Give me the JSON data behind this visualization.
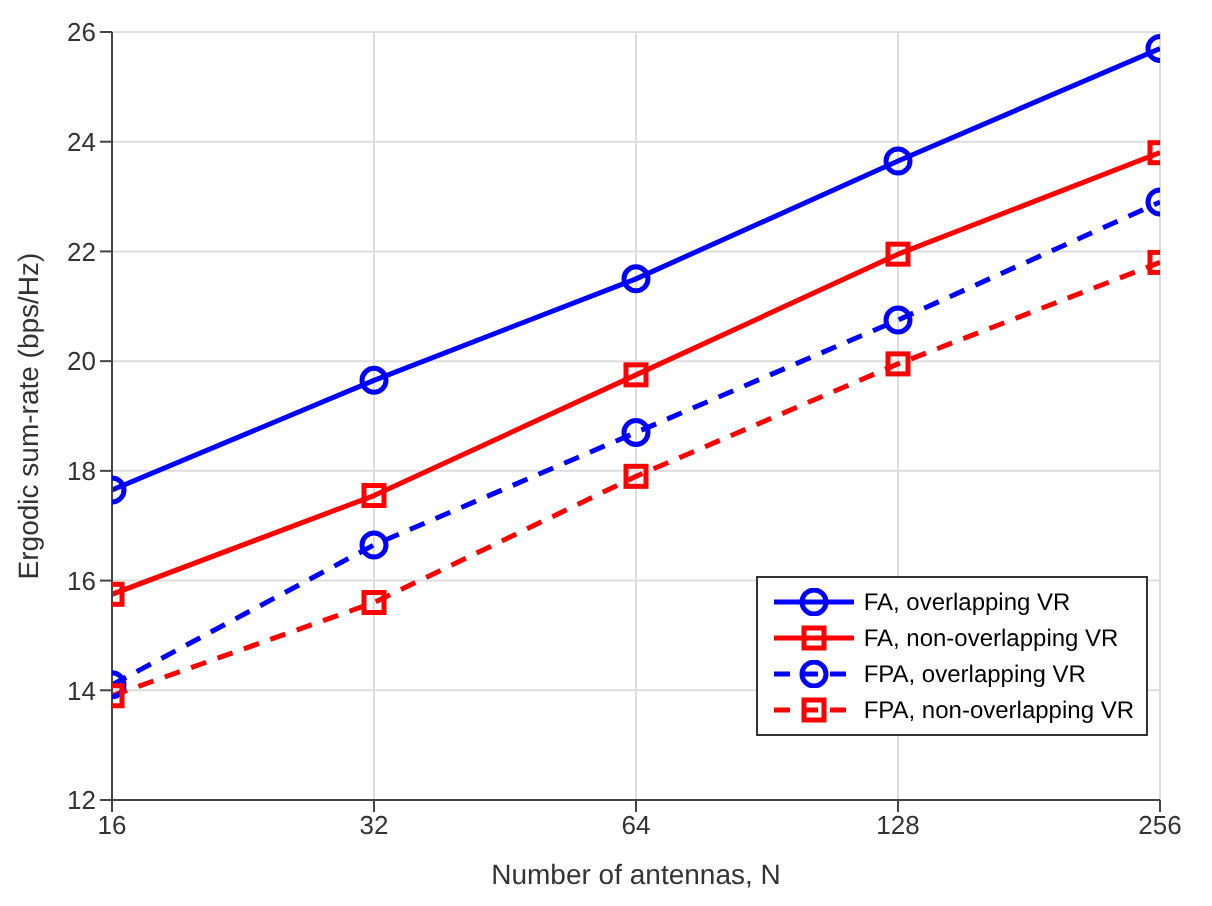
{
  "chart_data": {
    "type": "line",
    "xlabel": "Number of antennas, N",
    "ylabel": "Ergodic sum-rate (bps/Hz)",
    "x": [
      16,
      32,
      64,
      128,
      256
    ],
    "log": "x",
    "xlim": [
      16,
      256
    ],
    "xticks": [
      16,
      32,
      64,
      128,
      256
    ],
    "ylim": [
      12,
      26
    ],
    "yticks": [
      12,
      14,
      16,
      18,
      20,
      22,
      24,
      26
    ],
    "grid": true,
    "legend": "bottom right",
    "series": [
      {
        "name": "FA, overlapping VR",
        "color": "#0000ff",
        "marker": "circle",
        "line_style": "solid",
        "values": [
          17.65,
          19.65,
          21.5,
          23.65,
          25.7
        ]
      },
      {
        "name": "FA, non-overlapping VR",
        "color": "#ff0000",
        "marker": "square",
        "line_style": "solid",
        "values": [
          15.75,
          17.55,
          19.75,
          21.95,
          23.8
        ]
      },
      {
        "name": "FPA, overlapping VR",
        "color": "#0000ff",
        "marker": "circle",
        "line_style": "dashed",
        "values": [
          14.1,
          16.65,
          18.7,
          20.75,
          22.9
        ]
      },
      {
        "name": "FPA, non-overlapping VR",
        "color": "#ff0000",
        "marker": "square",
        "line_style": "dashed",
        "values": [
          13.9,
          15.6,
          17.9,
          19.95,
          21.8
        ]
      }
    ]
  }
}
